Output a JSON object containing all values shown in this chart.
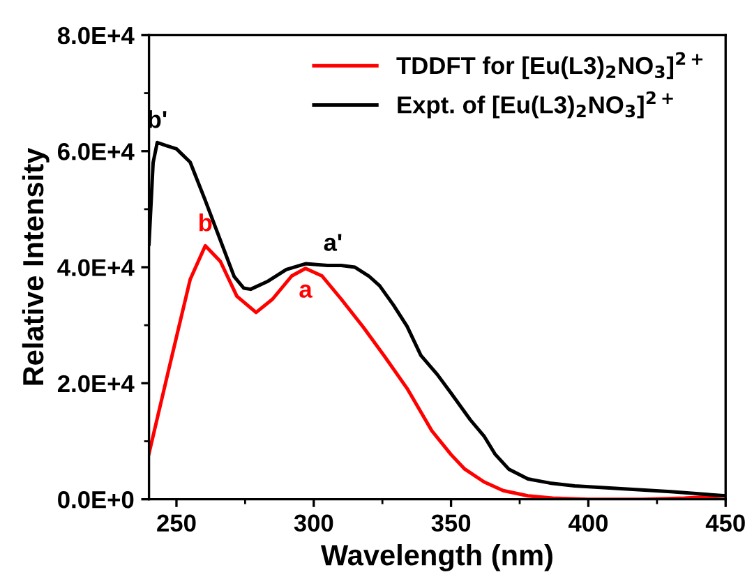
{
  "chart_data": {
    "type": "line",
    "xlabel": "Wavelength (nm)",
    "ylabel": "Relative Intensity",
    "xlim": [
      240,
      450
    ],
    "xticks": [
      250,
      300,
      350,
      400,
      450
    ],
    "ylim": [
      0,
      80000
    ],
    "yticks": [
      {
        "value": 0,
        "label": "0.0E+0"
      },
      {
        "value": 20000,
        "label": "2.0E+4"
      },
      {
        "value": 40000,
        "label": "4.0E+4"
      },
      {
        "value": 60000,
        "label": "6.0E+4"
      },
      {
        "value": 80000,
        "label": "8.0E+4"
      }
    ],
    "grid": false,
    "legend": "top right",
    "marker": "none",
    "line_style": "solid",
    "series": [
      {
        "name": "TDDFT for [Eu(L3)$_{2}$NO$_{3}$]$^{2+}$",
        "color": "#ff0000",
        "x": [
          240,
          247,
          255,
          260.5,
          266,
          272,
          279,
          285,
          292,
          297,
          303,
          310,
          318,
          326,
          334,
          343,
          350,
          355,
          362,
          369,
          378,
          387,
          400,
          420,
          435,
          450
        ],
        "values": [
          7900,
          22000,
          37900,
          43700,
          41000,
          35000,
          32200,
          34500,
          38500,
          39800,
          38500,
          34500,
          29700,
          24500,
          19100,
          11800,
          7700,
          5200,
          3000,
          1500,
          600,
          200,
          0,
          0,
          200,
          600
        ]
      },
      {
        "name": "Expt. of [Eu(L3)$_{2}$NO$_{3}$]$^{2+}$",
        "color": "#000000",
        "x": [
          240,
          241.5,
          243,
          246,
          250,
          255,
          260.5,
          265.7,
          271,
          274.5,
          277,
          283,
          290,
          297,
          305,
          310,
          315,
          320,
          324,
          329,
          334,
          339,
          345,
          350,
          357,
          362,
          366,
          371,
          378,
          386,
          395,
          413,
          430,
          450
        ],
        "values": [
          44000,
          58000,
          61500,
          61000,
          60400,
          58100,
          51500,
          45000,
          38400,
          36400,
          36200,
          37500,
          39600,
          40600,
          40300,
          40300,
          40000,
          38500,
          36800,
          33500,
          29800,
          24800,
          21500,
          18300,
          13700,
          10900,
          7800,
          5200,
          3500,
          2800,
          2300,
          1800,
          1300,
          600
        ]
      }
    ],
    "annotations": [
      {
        "text": "b",
        "x": 260.5,
        "y": 43700
      },
      {
        "text": "a",
        "x": 297,
        "y": 39800
      },
      {
        "text": "b'",
        "x": 243,
        "y": 61500
      },
      {
        "text": "a'",
        "x": 307,
        "y": 40300
      }
    ]
  }
}
